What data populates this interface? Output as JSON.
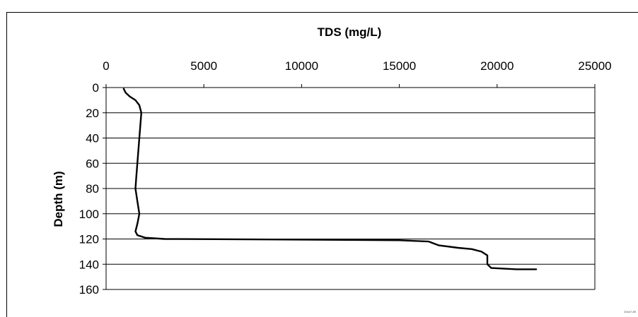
{
  "chart_data": {
    "type": "line",
    "title": "",
    "xlabel": "TDS (mg/L)",
    "ylabel": "Depth (m)",
    "x_axis_position": "top",
    "y_axis_inverted": true,
    "xlim": [
      0,
      25000
    ],
    "ylim": [
      0,
      160
    ],
    "x_ticks": [
      "0",
      "5000",
      "10000",
      "15000",
      "20000",
      "25000"
    ],
    "y_ticks": [
      "0",
      "20",
      "40",
      "60",
      "80",
      "100",
      "120",
      "140",
      "160"
    ],
    "grid": "horizontal",
    "legend": "none",
    "series": [
      {
        "color": "#000000",
        "points": [
          [
            900,
            1
          ],
          [
            1000,
            4
          ],
          [
            1200,
            7
          ],
          [
            1500,
            10
          ],
          [
            1700,
            14
          ],
          [
            1800,
            20
          ],
          [
            1750,
            30
          ],
          [
            1700,
            40
          ],
          [
            1650,
            50
          ],
          [
            1600,
            60
          ],
          [
            1550,
            70
          ],
          [
            1500,
            80
          ],
          [
            1600,
            90
          ],
          [
            1700,
            100
          ],
          [
            1600,
            108
          ],
          [
            1500,
            114
          ],
          [
            1600,
            117
          ],
          [
            2000,
            119
          ],
          [
            3000,
            120
          ],
          [
            10000,
            120.5
          ],
          [
            15000,
            121
          ],
          [
            16500,
            122
          ],
          [
            17000,
            125
          ],
          [
            18000,
            127
          ],
          [
            18700,
            128
          ],
          [
            19200,
            130
          ],
          [
            19500,
            133
          ],
          [
            19500,
            137
          ],
          [
            19500,
            140
          ],
          [
            19700,
            143
          ],
          [
            21000,
            144
          ],
          [
            22000,
            144
          ]
        ]
      }
    ]
  },
  "figure_code": "20447-89"
}
